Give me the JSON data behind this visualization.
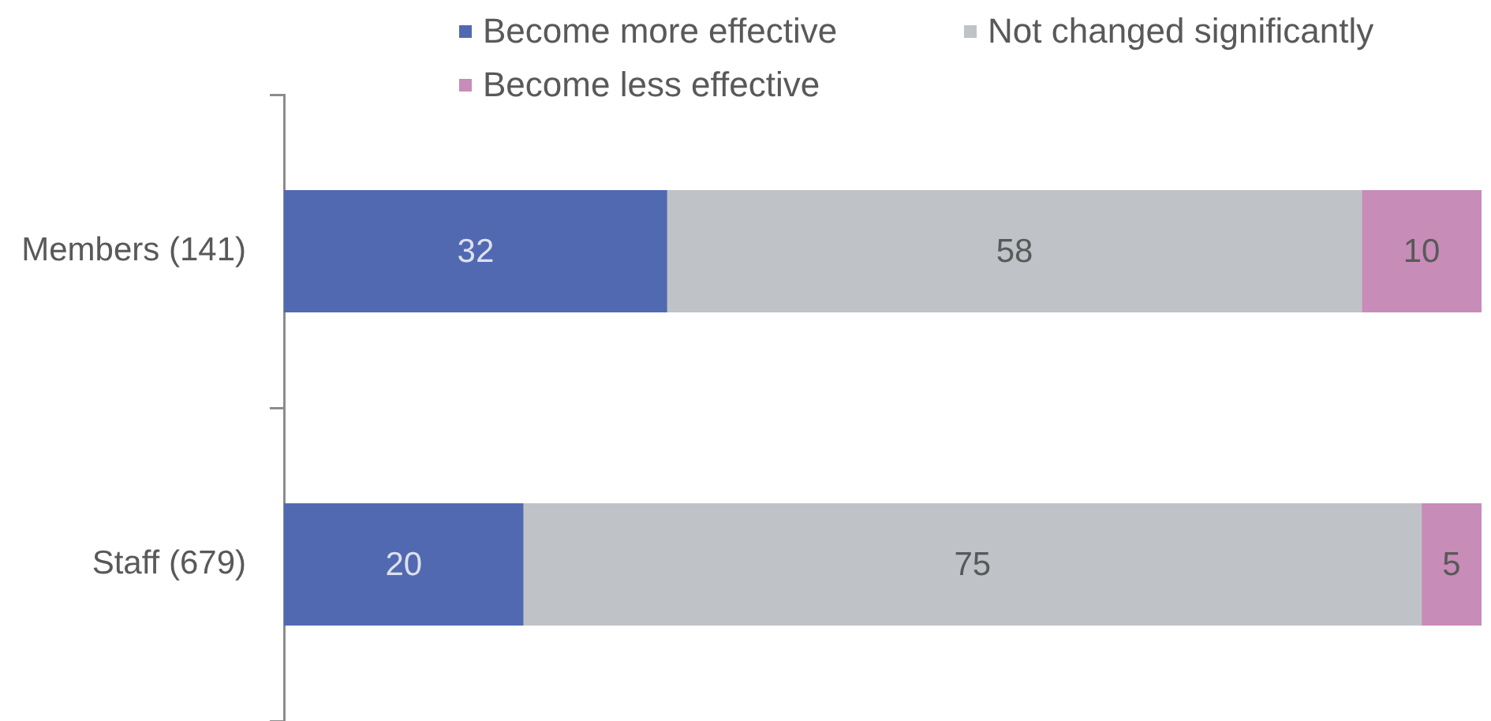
{
  "chart_data": {
    "type": "bar",
    "orientation": "horizontal",
    "stacked": true,
    "categories": [
      "Members (141)",
      "Staff (679)"
    ],
    "series": [
      {
        "name": "Become more effective",
        "color": "#5169b1",
        "values": [
          32,
          20
        ]
      },
      {
        "name": "Not changed significantly",
        "color": "#bfc2c7",
        "values": [
          58,
          75
        ]
      },
      {
        "name": "Become less effective",
        "color": "#c78cb8",
        "values": [
          10,
          5
        ]
      }
    ],
    "data_labels": true,
    "legend": "top",
    "tick_labels": "y"
  }
}
